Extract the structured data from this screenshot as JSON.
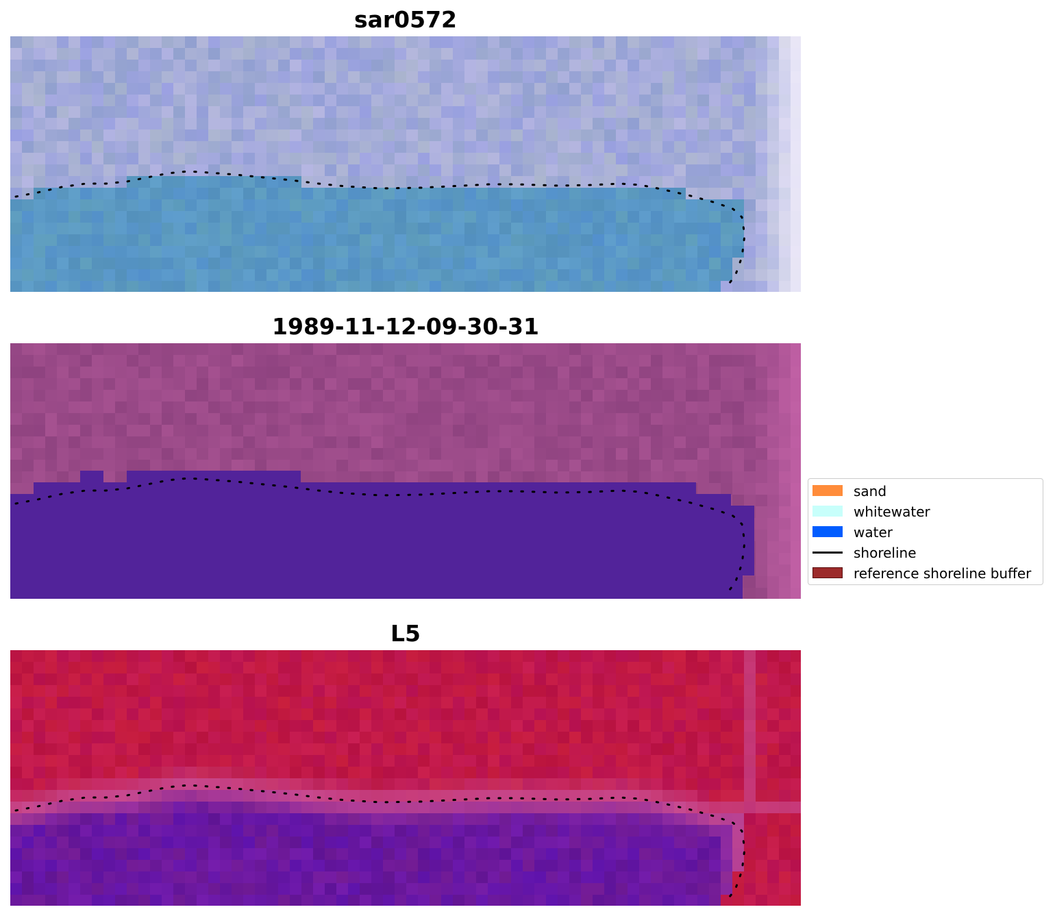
{
  "panels": [
    {
      "title": "sar0572"
    },
    {
      "title": "1989-11-12-09-30-31"
    },
    {
      "title": "L5"
    }
  ],
  "legend": {
    "items": [
      {
        "label": "sand",
        "color": "#ff8c3a",
        "kind": "patch"
      },
      {
        "label": "whitewater",
        "color": "#c8fffb",
        "kind": "patch"
      },
      {
        "label": "water",
        "color": "#005cff",
        "kind": "patch"
      },
      {
        "label": "shoreline",
        "color": "#000000",
        "kind": "line"
      },
      {
        "label": "reference shoreline buffer",
        "color": "#9c2b2b",
        "kind": "patch"
      }
    ]
  },
  "colors": {
    "sar_land": "#a3abd8",
    "sar_water": "#5a98c4",
    "classified_background": "#9a4a88",
    "classified_water": "#52239a",
    "l5_land": "#c01848",
    "l5_water": "#6a18a0",
    "l5_edge": "#c84a90"
  }
}
